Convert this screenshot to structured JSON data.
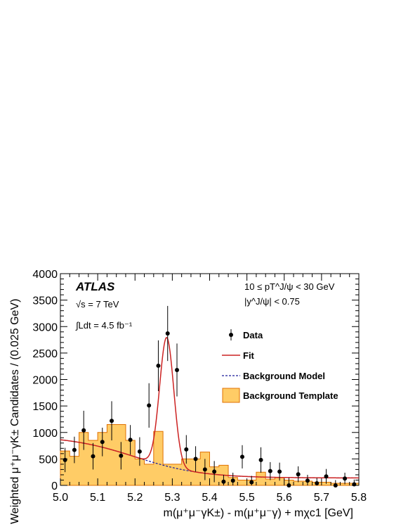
{
  "chart_data": {
    "type": "histogram-with-points-and-fits",
    "experiment_label": "ATLAS",
    "energy_label": "√s = 7 TeV",
    "lumi_label": "∫Ldt = 4.5 fb⁻¹",
    "cuts": [
      "10 ≤ pT^J/ψ < 30 GeV",
      "|y^J/ψ| < 0.75"
    ],
    "xlabel": "m(μ⁺μ⁻γK±) - m(μ⁺μ⁻γ) + mχc1 [GeV]",
    "ylabel": "Weighted μ⁺μ⁻γK± Candidates / (0.025 GeV)",
    "xlim": [
      5.0,
      5.8
    ],
    "ylim": [
      0,
      4000
    ],
    "x_ticks": [
      5.0,
      5.1,
      5.2,
      5.3,
      5.4,
      5.5,
      5.6,
      5.7,
      5.8
    ],
    "x_tick_labels": [
      "5.0",
      "5.1",
      "5.2",
      "5.3",
      "5.4",
      "5.5",
      "5.6",
      "5.7",
      "5.8"
    ],
    "y_ticks": [
      0,
      500,
      1000,
      1500,
      2000,
      2500,
      3000,
      3500,
      4000
    ],
    "y_tick_labels": [
      "0",
      "500",
      "1000",
      "1500",
      "2000",
      "2500",
      "3000",
      "3500",
      "4000"
    ],
    "grid": false,
    "legend_position": "right",
    "legend": {
      "data": "Data",
      "fit": "Fit",
      "background_model": "Background Model",
      "background_template": "Background Template"
    },
    "colors": {
      "template_fill": "#FFCC66",
      "template_edge": "#E07000",
      "fit": "#CC2222",
      "background_model": "#1A1A99",
      "data": "#000000"
    },
    "template": {
      "bin_edges": [
        5.0,
        5.025,
        5.05,
        5.075,
        5.1,
        5.125,
        5.15,
        5.175,
        5.2,
        5.225,
        5.25,
        5.275,
        5.3,
        5.325,
        5.35,
        5.375,
        5.4,
        5.425,
        5.45,
        5.475,
        5.5,
        5.525,
        5.55,
        5.575,
        5.6,
        5.625,
        5.65,
        5.675,
        5.7,
        5.725,
        5.75,
        5.775,
        5.8
      ],
      "values": [
        650,
        550,
        1000,
        850,
        1000,
        1150,
        1150,
        850,
        500,
        400,
        1020,
        400,
        400,
        500,
        500,
        630,
        350,
        380,
        150,
        100,
        100,
        250,
        120,
        150,
        100,
        80,
        80,
        60,
        60,
        40,
        40,
        40
      ]
    },
    "data_points": {
      "x": [
        5.0125,
        5.0375,
        5.0625,
        5.0875,
        5.1125,
        5.1375,
        5.1625,
        5.1875,
        5.2125,
        5.2375,
        5.2625,
        5.2875,
        5.3125,
        5.3375,
        5.3625,
        5.3875,
        5.4125,
        5.4375,
        5.4625,
        5.4875,
        5.5125,
        5.5375,
        5.5625,
        5.5875,
        5.6125,
        5.6375,
        5.6625,
        5.6875,
        5.7125,
        5.7375,
        5.7625,
        5.7875
      ],
      "y": [
        480,
        670,
        1040,
        550,
        820,
        1220,
        560,
        860,
        640,
        1510,
        2260,
        2870,
        2180,
        680,
        500,
        300,
        260,
        70,
        90,
        540,
        60,
        480,
        270,
        260,
        0,
        210,
        90,
        40,
        170,
        0,
        130,
        20
      ],
      "err": [
        230,
        250,
        370,
        250,
        270,
        370,
        260,
        280,
        270,
        420,
        480,
        520,
        500,
        270,
        240,
        200,
        200,
        130,
        150,
        220,
        120,
        240,
        170,
        170,
        140,
        150,
        110,
        100,
        140,
        100,
        110,
        90
      ]
    },
    "fit_model": {
      "background": {
        "a": 800,
        "b": 140,
        "c": 5.2,
        "d": 0.09
      },
      "signal": {
        "amp": 2430,
        "mean": 5.285,
        "sigma": 0.019
      }
    }
  }
}
